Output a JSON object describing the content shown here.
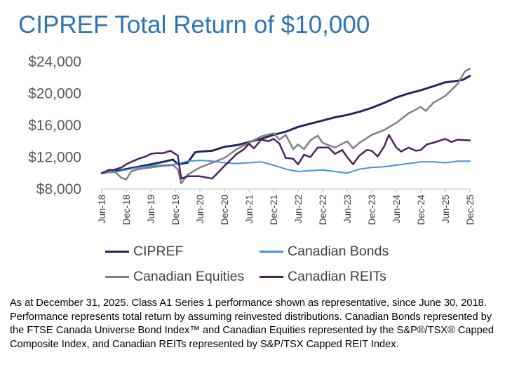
{
  "chart_data": {
    "type": "line",
    "title": "CIPREF Total Return of $10,000",
    "xlabel": "",
    "ylabel": "",
    "ylim": [
      8000,
      24000
    ],
    "yticks": [
      8000,
      12000,
      16000,
      20000,
      24000
    ],
    "ytick_labels": [
      "$8,000",
      "$12,000",
      "$16,000",
      "$20,000",
      "$24,000"
    ],
    "xlim": [
      2018.5,
      2026.0
    ],
    "xticks": [
      2018.5,
      2019.0,
      2019.5,
      2020.0,
      2020.5,
      2021.0,
      2021.5,
      2022.0,
      2022.5,
      2023.0,
      2023.5,
      2024.0,
      2024.5,
      2025.0,
      2025.5,
      2026.0
    ],
    "xtick_labels": [
      "Jun-18",
      "Dec-18",
      "Jun-19",
      "Dec-19",
      "Jun-20",
      "Dec-20",
      "Jun-21",
      "Dec-21",
      "Jun-22",
      "Dec-22",
      "Jun-23",
      "Dec-23",
      "Jun-24",
      "Dec-24",
      "Jun-25",
      "Dec-25"
    ],
    "grid": false,
    "legend_position": "bottom",
    "series": [
      {
        "name": "CIPREF",
        "color": "#1f2a5c",
        "width": 3,
        "x": [
          2018.5,
          2018.75,
          2019.0,
          2019.25,
          2019.5,
          2019.75,
          2019.95,
          2020.05,
          2020.25,
          2020.4,
          2020.5,
          2020.75,
          2021.0,
          2021.25,
          2021.5,
          2021.75,
          2022.0,
          2022.25,
          2022.5,
          2022.75,
          2023.0,
          2023.25,
          2023.5,
          2023.75,
          2024.0,
          2024.25,
          2024.5,
          2024.75,
          2025.0,
          2025.25,
          2025.5,
          2025.75,
          2025.85,
          2026.0
        ],
        "y": [
          10000,
          10200,
          10500,
          10800,
          11100,
          11400,
          11700,
          11100,
          11300,
          12600,
          12700,
          12800,
          13300,
          13500,
          13900,
          14300,
          14800,
          15200,
          15800,
          16200,
          16600,
          17000,
          17300,
          17700,
          18200,
          18800,
          19500,
          20000,
          20400,
          20900,
          21400,
          21600,
          21700,
          22200
        ]
      },
      {
        "name": "Canadian Bonds",
        "color": "#4a90d9",
        "width": 2,
        "x": [
          2018.5,
          2018.75,
          2019.0,
          2019.25,
          2019.5,
          2019.75,
          2020.0,
          2020.25,
          2020.5,
          2020.75,
          2021.0,
          2021.25,
          2021.5,
          2021.75,
          2022.0,
          2022.25,
          2022.5,
          2022.75,
          2023.0,
          2023.25,
          2023.5,
          2023.75,
          2024.0,
          2024.25,
          2024.5,
          2024.75,
          2025.0,
          2025.25,
          2025.5,
          2025.75,
          2026.0
        ],
        "y": [
          10000,
          10100,
          10400,
          10700,
          10900,
          11000,
          11100,
          11500,
          11600,
          11500,
          11300,
          11200,
          11300,
          11400,
          11000,
          10500,
          10200,
          10300,
          10400,
          10200,
          10000,
          10500,
          10700,
          10800,
          11000,
          11200,
          11400,
          11400,
          11300,
          11500,
          11500
        ]
      },
      {
        "name": "Canadian Equities",
        "color": "#808080",
        "width": 2.5,
        "x": [
          2018.5,
          2018.6,
          2018.75,
          2018.9,
          2019.0,
          2019.1,
          2019.25,
          2019.5,
          2019.75,
          2019.95,
          2020.05,
          2020.12,
          2020.25,
          2020.5,
          2020.75,
          2021.0,
          2021.25,
          2021.5,
          2021.75,
          2022.0,
          2022.12,
          2022.25,
          2022.4,
          2022.5,
          2022.62,
          2022.75,
          2022.9,
          2023.0,
          2023.25,
          2023.5,
          2023.62,
          2023.75,
          2024.0,
          2024.25,
          2024.5,
          2024.75,
          2025.0,
          2025.1,
          2025.25,
          2025.5,
          2025.75,
          2025.9,
          2026.0
        ],
        "y": [
          10000,
          10100,
          10300,
          9400,
          9200,
          10200,
          10500,
          10700,
          10900,
          11000,
          10500,
          8700,
          9800,
          10700,
          11300,
          11900,
          13000,
          13800,
          14600,
          15000,
          14200,
          14800,
          13000,
          13600,
          13000,
          14100,
          14700,
          13800,
          13200,
          14000,
          13100,
          13800,
          14800,
          15400,
          16300,
          17500,
          18300,
          17800,
          18800,
          19700,
          21200,
          22800,
          23100
        ]
      },
      {
        "name": "Canadian REITs",
        "color": "#4b2160",
        "width": 2.5,
        "x": [
          2018.5,
          2018.65,
          2018.75,
          2018.9,
          2019.0,
          2019.1,
          2019.25,
          2019.4,
          2019.5,
          2019.6,
          2019.75,
          2019.9,
          2019.95,
          2020.05,
          2020.12,
          2020.25,
          2020.5,
          2020.75,
          2021.0,
          2021.25,
          2021.4,
          2021.5,
          2021.6,
          2021.75,
          2021.9,
          2022.0,
          2022.12,
          2022.25,
          2022.4,
          2022.5,
          2022.62,
          2022.75,
          2022.9,
          2023.0,
          2023.12,
          2023.25,
          2023.4,
          2023.5,
          2023.62,
          2023.75,
          2023.9,
          2024.0,
          2024.12,
          2024.25,
          2024.35,
          2024.5,
          2024.6,
          2024.75,
          2024.9,
          2025.0,
          2025.12,
          2025.25,
          2025.4,
          2025.5,
          2025.62,
          2025.75,
          2026.0
        ],
        "y": [
          10000,
          10400,
          10400,
          10700,
          11100,
          11400,
          11800,
          12100,
          12400,
          12500,
          12500,
          12800,
          12600,
          12200,
          9300,
          9600,
          9600,
          9300,
          10900,
          12400,
          13000,
          13700,
          13100,
          14200,
          14000,
          14300,
          13700,
          11900,
          11800,
          11100,
          12300,
          12000,
          13200,
          13200,
          13200,
          12400,
          12900,
          12000,
          11100,
          12200,
          12900,
          12800,
          12100,
          13300,
          14800,
          13200,
          12700,
          13200,
          12800,
          12900,
          13600,
          13800,
          14100,
          14300,
          13900,
          14200,
          14100
        ]
      }
    ]
  },
  "footnote": "As at December 31, 2025. Class A1 Series 1 performance shown as representative, since June 30, 2018. Performance represents total return by assuming reinvested distributions. Canadian Bonds represented by the FTSE Canada Universe Bond Index™ and Canadian Equities represented by the S&P®/TSX® Capped Composite Index, and Canadian REITs represented by S&P/TSX Capped REIT Index."
}
